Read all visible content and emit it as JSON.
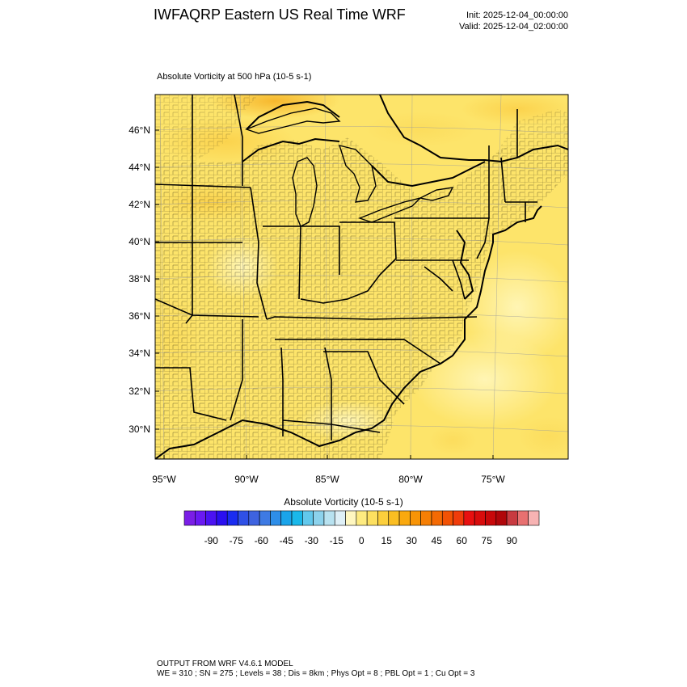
{
  "header": {
    "title": "IWFAQRP Eastern US Real Time WRF",
    "init": "Init: 2025-12-04_00:00:00",
    "valid": "Valid: 2025-12-04_02:00:00"
  },
  "field": {
    "title": "Absolute Vorticity at 500 hPa   (10-5 s-1)"
  },
  "map": {
    "projection": "lambert-conformal",
    "lat_labels": [
      "46°N",
      "44°N",
      "42°N",
      "40°N",
      "38°N",
      "36°N",
      "34°N",
      "32°N",
      "30°N"
    ],
    "lon_labels": [
      "95°W",
      "90°W",
      "85°W",
      "80°W",
      "75°W"
    ],
    "fill_color": "#fde46a",
    "boundaries": [
      "coastlines",
      "state-lines",
      "county-lines",
      "lakes"
    ]
  },
  "colorbar": {
    "title": "Absolute Vorticity  (10-5 s-1)",
    "ticks": [
      "-90",
      "-75",
      "-60",
      "-45",
      "-30",
      "-15",
      "0",
      "15",
      "30",
      "45",
      "60",
      "75",
      "90"
    ],
    "colors": [
      "#7a1ee6",
      "#6a19f2",
      "#4b12f2",
      "#2a0ff0",
      "#1a2cf0",
      "#2f50e6",
      "#3e63e0",
      "#3e7ae3",
      "#2e8ee8",
      "#1aa4ea",
      "#1ab8ea",
      "#62c8ec",
      "#8cd2ec",
      "#b8e2f0",
      "#dff0f7",
      "#fff7c0",
      "#feeb80",
      "#fde060",
      "#fccf3c",
      "#fbbe22",
      "#faa90e",
      "#f89406",
      "#f67f04",
      "#f46a04",
      "#f25204",
      "#f03c0a",
      "#e81010",
      "#d80c0c",
      "#c8080a",
      "#b0060a",
      "#c83a40",
      "#e87070",
      "#f7b3b3"
    ]
  },
  "footer": {
    "line1": "OUTPUT FROM WRF V4.6.1 MODEL",
    "line2": "WE = 310 ; SN = 275 ; Levels = 38 ; Dis = 8km ; Phys Opt = 8 ; PBL Opt = 1 ; Cu Opt = 3"
  }
}
